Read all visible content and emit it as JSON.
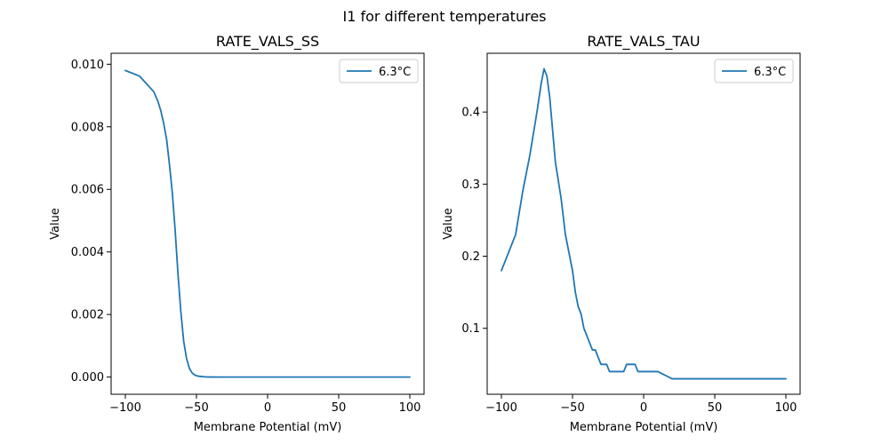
{
  "figure": {
    "title": "I1 for different temperatures"
  },
  "chart_data": [
    {
      "type": "line",
      "title": "RATE_VALS_SS",
      "xlabel": "Membrane Potential (mV)",
      "ylabel": "Value",
      "xlim": [
        -110,
        110
      ],
      "ylim": [
        -0.00055,
        0.01035
      ],
      "xticks": [
        -100,
        -50,
        0,
        50,
        100
      ],
      "xtick_labels": [
        "−100",
        "−50",
        "0",
        "50",
        "100"
      ],
      "yticks": [
        0.0,
        0.002,
        0.004,
        0.006,
        0.008,
        0.01
      ],
      "ytick_labels": [
        "0.000",
        "0.002",
        "0.004",
        "0.006",
        "0.008",
        "0.010"
      ],
      "legend_position": "top-right",
      "grid": false,
      "series": [
        {
          "name": "6.3°C",
          "color": "#1f77b4",
          "x": [
            -100,
            -90,
            -80,
            -77,
            -75,
            -73,
            -71,
            -69,
            -67,
            -65,
            -63,
            -61,
            -59,
            -57,
            -55,
            -53,
            -51,
            -49,
            -47,
            -45,
            -43,
            -40,
            -35,
            -30,
            -20,
            0,
            50,
            100
          ],
          "y": [
            0.0098,
            0.00962,
            0.00912,
            0.0088,
            0.0085,
            0.0081,
            0.0076,
            0.0068,
            0.0059,
            0.0047,
            0.0033,
            0.0021,
            0.00115,
            0.0006,
            0.00028,
            0.00013,
            6e-05,
            3e-05,
            2e-05,
            1e-05,
            5e-06,
            2e-06,
            1e-06,
            0,
            0,
            0,
            0,
            0
          ]
        }
      ]
    },
    {
      "type": "line",
      "title": "RATE_VALS_TAU",
      "xlabel": "Membrane Potential (mV)",
      "ylabel": "Value",
      "xlim": [
        -110,
        110
      ],
      "ylim": [
        0.0085,
        0.4815
      ],
      "xticks": [
        -100,
        -50,
        0,
        50,
        100
      ],
      "xtick_labels": [
        "−100",
        "−50",
        "0",
        "50",
        "100"
      ],
      "yticks": [
        0.1,
        0.2,
        0.3,
        0.4
      ],
      "ytick_labels": [
        "0.1",
        "0.2",
        "0.3",
        "0.4"
      ],
      "legend_position": "top-right",
      "grid": false,
      "series": [
        {
          "name": "6.3°C",
          "color": "#1f77b4",
          "x": [
            -100,
            -90,
            -85,
            -80,
            -75,
            -72,
            -70,
            -68,
            -66,
            -62,
            -58,
            -55,
            -52,
            -50,
            -48,
            -46,
            -44,
            -42,
            -40,
            -38,
            -36,
            -34,
            -32,
            -30,
            -28,
            -26,
            -24,
            -22,
            -20,
            -18,
            -16,
            -14,
            -12,
            -10,
            -8,
            -6,
            -4,
            0,
            10,
            20,
            30,
            40,
            50,
            60,
            70,
            80,
            90,
            100
          ],
          "y": [
            0.18,
            0.23,
            0.29,
            0.34,
            0.4,
            0.44,
            0.46,
            0.45,
            0.42,
            0.33,
            0.28,
            0.23,
            0.2,
            0.18,
            0.15,
            0.13,
            0.12,
            0.1,
            0.09,
            0.08,
            0.07,
            0.07,
            0.06,
            0.05,
            0.05,
            0.05,
            0.04,
            0.04,
            0.04,
            0.04,
            0.04,
            0.04,
            0.05,
            0.05,
            0.05,
            0.05,
            0.04,
            0.04,
            0.04,
            0.03,
            0.03,
            0.03,
            0.03,
            0.03,
            0.03,
            0.03,
            0.03,
            0.03
          ]
        }
      ]
    }
  ]
}
